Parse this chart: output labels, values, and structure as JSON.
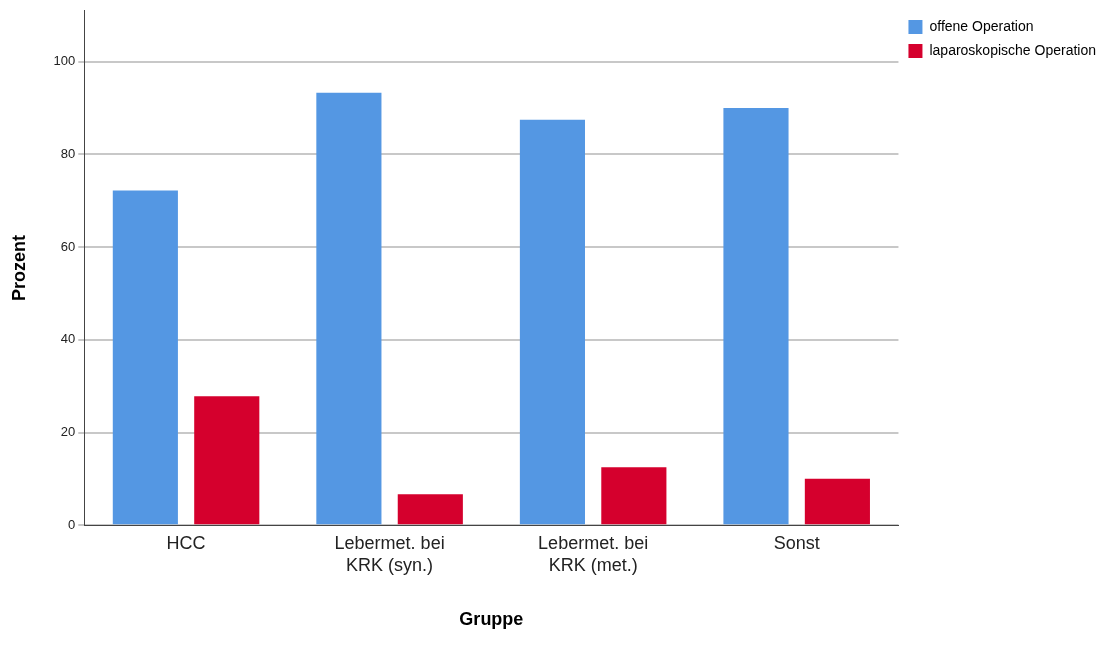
{
  "chart_data": {
    "type": "bar",
    "xlabel": "Gruppe",
    "ylabel": "Prozent",
    "categories": [
      "HCC",
      "Lebermet. bei KRK (syn.)",
      "Lebermet. bei KRK (met.)",
      "Sonst"
    ],
    "series": [
      {
        "name": "offene Operation",
        "color": "#5497e3",
        "values": [
          72.2,
          93.3,
          87.5,
          90
        ]
      },
      {
        "name": "laparoskopische Operation",
        "color": "#d5002d",
        "values": [
          27.8,
          6.7,
          12.5,
          10
        ]
      }
    ],
    "ylim": [
      0,
      111
    ],
    "yticks": [
      0,
      20,
      40,
      60,
      80,
      100
    ],
    "grid": "y",
    "legend": "right"
  }
}
